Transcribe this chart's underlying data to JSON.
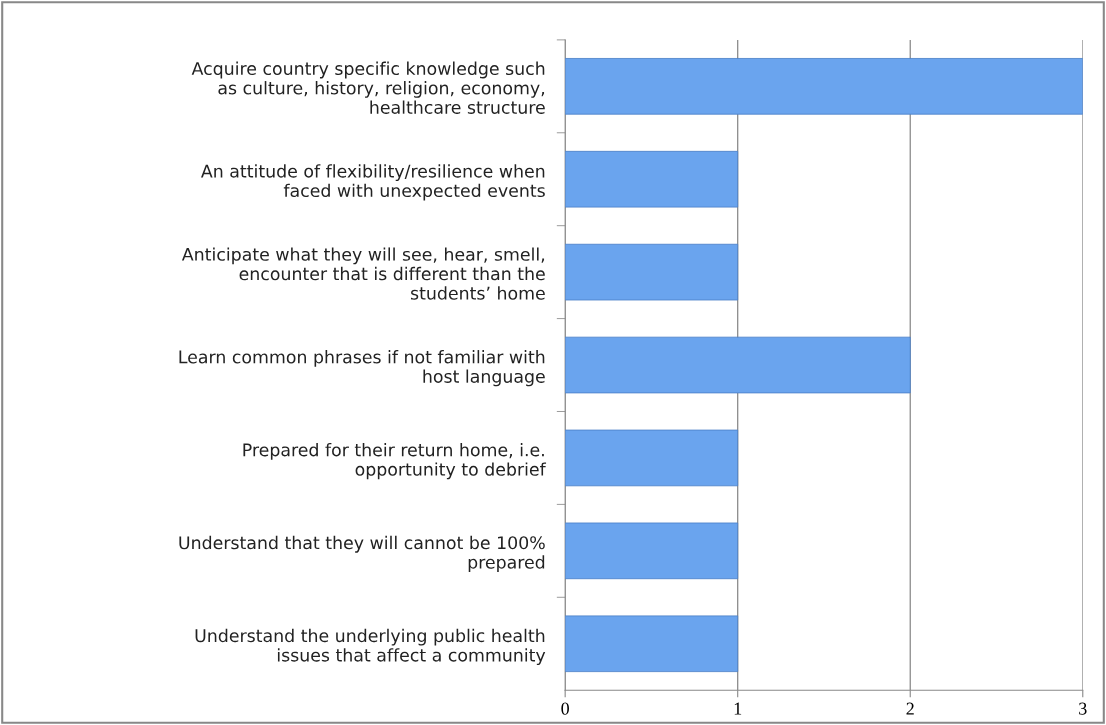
{
  "chart_data": {
    "type": "bar",
    "orientation": "horizontal",
    "categories": [
      "Acquire country specific knowledge such\nas culture, history, religion, economy,\nhealthcare structure",
      "An attitude of flexibility/resilience when\nfaced with unexpected events",
      "Anticipate what they will see, hear, smell,\nencounter that is different than the\nstudents’ home",
      "Learn common phrases if not familiar with\nhost language",
      "Prepared for their return home, i.e.\nopportunity to debrief",
      "Understand that they will cannot be 100%\nprepared",
      "Understand the underlying public health\nissues that affect a community"
    ],
    "values": [
      3,
      1,
      1,
      2,
      1,
      1,
      1
    ],
    "color": "#6aa4ee",
    "xlim": [
      0,
      3
    ],
    "xticks": [
      0,
      1,
      2,
      3
    ],
    "grid": "x",
    "legend": false
  }
}
